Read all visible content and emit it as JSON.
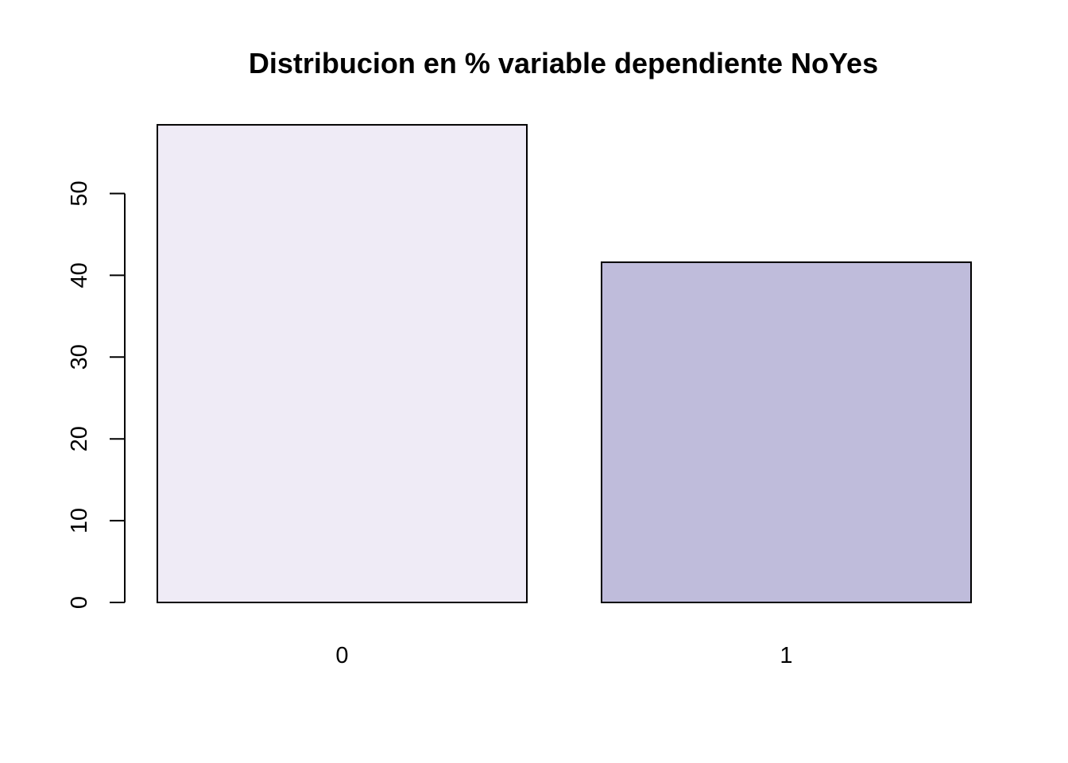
{
  "chart_data": {
    "type": "bar",
    "title": "Distribucion en % variable dependiente NoYes",
    "xlabel": "",
    "ylabel": "",
    "categories": [
      "0",
      "1"
    ],
    "values": [
      58.4,
      41.6
    ],
    "bar_colors": [
      "#EFEBF6",
      "#BFBCDB"
    ],
    "ylim": [
      0,
      58.4
    ],
    "yticks": [
      0,
      10,
      20,
      30,
      40,
      50
    ],
    "grid": false,
    "legend": "none"
  }
}
